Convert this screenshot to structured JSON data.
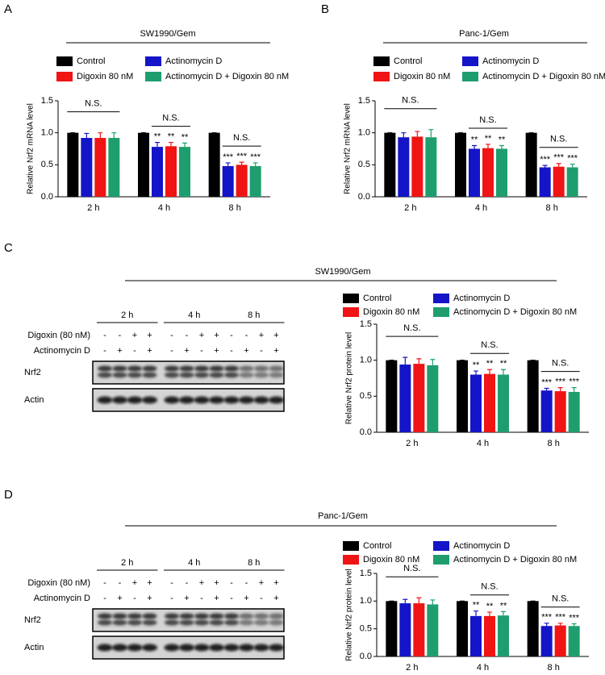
{
  "panels": [
    "A",
    "B",
    "C",
    "D"
  ],
  "chart_data": [
    {
      "type": "bar",
      "title": "SW1990/Gem",
      "y_label": "Relative Nrf2 mRNA level",
      "categories": [
        "2 h",
        "4 h",
        "8 h"
      ],
      "ylim": [
        0,
        1.5
      ],
      "yticks": [
        {
          "value": 0,
          "label": "0.0"
        },
        0.5,
        {
          "value": 1,
          "label": "1.0"
        },
        1.5
      ],
      "brackets": [
        "N.S.",
        "N.S.",
        "N.S."
      ],
      "series": [
        {
          "name": "Control",
          "color": "#000000",
          "values": [
            1,
            1,
            1
          ],
          "errors": [
            0,
            0,
            0
          ]
        },
        {
          "name": "Actinomycin D",
          "color": "#1414c8",
          "values": [
            0.92,
            0.78,
            0.48
          ],
          "errors": [
            0.07,
            0.07,
            0.05
          ],
          "significance": [
            null,
            "**",
            "***"
          ]
        },
        {
          "name": "Digoxin 80 nM",
          "color": "#f01414",
          "values": [
            0.92,
            0.79,
            0.5
          ],
          "errors": [
            0.08,
            0.06,
            0.04
          ],
          "significance": [
            null,
            "**",
            "***"
          ]
        },
        {
          "name": "Actinomycin D + Digoxin 80 nM",
          "color": "#1e9e6e",
          "values": [
            0.92,
            0.78,
            0.48
          ],
          "errors": [
            0.08,
            0.06,
            0.05
          ],
          "significance": [
            null,
            "**",
            "***"
          ]
        }
      ]
    },
    {
      "type": "bar",
      "title": "Panc-1/Gem",
      "y_label": "Relative Nrf2 mRNA level",
      "categories": [
        "2 h",
        "4 h",
        "8 h"
      ],
      "ylim": [
        0,
        1.5
      ],
      "yticks": [
        {
          "value": 0,
          "label": "0.0"
        },
        0.5,
        {
          "value": 1,
          "label": "1.0"
        },
        1.5
      ],
      "brackets": [
        "N.S.",
        "N.S.",
        "N.S."
      ],
      "series": [
        {
          "name": "Control",
          "color": "#000000",
          "values": [
            1,
            1,
            1
          ],
          "errors": [
            0,
            0,
            0
          ]
        },
        {
          "name": "Actinomycin D",
          "color": "#1414c8",
          "values": [
            0.93,
            0.75,
            0.46
          ],
          "errors": [
            0.07,
            0.05,
            0.03
          ],
          "significance": [
            null,
            "**",
            "***"
          ]
        },
        {
          "name": "Digoxin 80 nM",
          "color": "#f01414",
          "values": [
            0.94,
            0.76,
            0.47
          ],
          "errors": [
            0.08,
            0.06,
            0.05
          ],
          "significance": [
            null,
            "**",
            "***"
          ]
        },
        {
          "name": "Actinomycin D + Digoxin 80 nM",
          "color": "#1e9e6e",
          "values": [
            0.93,
            0.75,
            0.46
          ],
          "errors": [
            0.12,
            0.05,
            0.05
          ],
          "significance": [
            null,
            "**",
            "***"
          ]
        }
      ]
    },
    {
      "type": "bar",
      "title": "SW1990/Gem",
      "y_label": "Relative Nrf2 protein level",
      "categories": [
        "2 h",
        "4 h",
        "8 h"
      ],
      "ylim": [
        0,
        1.5
      ],
      "yticks": [
        {
          "value": 0,
          "label": "0.0"
        },
        0.5,
        {
          "value": 1,
          "label": "1.0"
        },
        1.5
      ],
      "brackets": [
        "N.S.",
        "N.S.",
        "N.S."
      ],
      "series": [
        {
          "name": "Control",
          "color": "#000000",
          "values": [
            1,
            1,
            1
          ],
          "errors": [
            0,
            0,
            0
          ]
        },
        {
          "name": "Actinomycin D",
          "color": "#1414c8",
          "values": [
            0.94,
            0.8,
            0.58
          ],
          "errors": [
            0.1,
            0.05,
            0.03
          ],
          "significance": [
            null,
            "**",
            "***"
          ]
        },
        {
          "name": "Digoxin 80 nM",
          "color": "#f01414",
          "values": [
            0.95,
            0.81,
            0.57
          ],
          "errors": [
            0.07,
            0.06,
            0.05
          ],
          "significance": [
            null,
            "**",
            "***"
          ]
        },
        {
          "name": "Actinomycin D + Digoxin 80 nM",
          "color": "#1e9e6e",
          "values": [
            0.93,
            0.8,
            0.56
          ],
          "errors": [
            0.08,
            0.07,
            0.06
          ],
          "significance": [
            null,
            "**",
            "***"
          ]
        }
      ]
    },
    {
      "type": "bar",
      "title": "Panc-1/Gem",
      "y_label": "Relative Nrf2 protein level",
      "categories": [
        "2 h",
        "4 h",
        "8 h"
      ],
      "ylim": [
        0,
        1.5
      ],
      "yticks": [
        {
          "value": 0,
          "label": "0.0"
        },
        0.5,
        {
          "value": 1,
          "label": "1.0"
        },
        1.5
      ],
      "brackets": [
        "N.S.",
        "N.S.",
        "N.S."
      ],
      "series": [
        {
          "name": "Control",
          "color": "#000000",
          "values": [
            1,
            1,
            1
          ],
          "errors": [
            0,
            0,
            0
          ]
        },
        {
          "name": "Actinomycin D",
          "color": "#1414c8",
          "values": [
            0.96,
            0.73,
            0.55
          ],
          "errors": [
            0.07,
            0.09,
            0.05
          ],
          "significance": [
            null,
            "**",
            "***"
          ]
        },
        {
          "name": "Digoxin 80 nM",
          "color": "#f01414",
          "values": [
            0.96,
            0.73,
            0.56
          ],
          "errors": [
            0.1,
            0.07,
            0.04
          ],
          "significance": [
            null,
            "**",
            "***"
          ]
        },
        {
          "name": "Actinomycin D + Digoxin 80 nM",
          "color": "#1e9e6e",
          "values": [
            0.94,
            0.74,
            0.55
          ],
          "errors": [
            0.08,
            0.07,
            0.04
          ],
          "significance": [
            null,
            "**",
            "***"
          ]
        }
      ]
    }
  ],
  "blots": [
    {
      "times": [
        "2 h",
        "4 h",
        "8 h"
      ],
      "rows": [
        {
          "label": "Digoxin (80 nM)",
          "marks": [
            "-",
            "-",
            "+",
            "+",
            "-",
            "-",
            "+",
            "+",
            "-",
            "-",
            "+",
            "+"
          ]
        },
        {
          "label": "Actinomycin D",
          "marks": [
            "-",
            "+",
            "-",
            "+",
            "-",
            "+",
            "-",
            "+",
            "-",
            "+",
            "-",
            "+"
          ]
        }
      ],
      "bands": [
        "Nrf2",
        "Actin"
      ]
    },
    {
      "times": [
        "2 h",
        "4 h",
        "8 h"
      ],
      "rows": [
        {
          "label": "Digoxin (80 nM)",
          "marks": [
            "-",
            "-",
            "+",
            "+",
            "-",
            "-",
            "+",
            "+",
            "-",
            "-",
            "+",
            "+"
          ]
        },
        {
          "label": "Actinomycin D",
          "marks": [
            "-",
            "+",
            "-",
            "+",
            "-",
            "+",
            "-",
            "+",
            "-",
            "+",
            "-",
            "+"
          ]
        }
      ],
      "bands": [
        "Nrf2",
        "Actin"
      ]
    }
  ]
}
